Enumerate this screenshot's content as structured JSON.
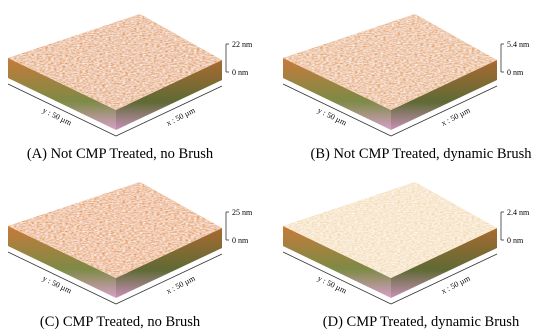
{
  "panels": [
    {
      "caption": "(A) Not CMP Treated, no Brush",
      "z_max": "22 nm",
      "z_min": "0 nm",
      "y_axis": "y : 50 µm",
      "x_axis": "x : 50 µm"
    },
    {
      "caption": "(B) Not CMP Treated, dynamic Brush",
      "z_max": "5.4 nm",
      "z_min": "0 nm",
      "y_axis": "y : 50 µm",
      "x_axis": "x : 50 µm"
    },
    {
      "caption": "(C) CMP Treated, no Brush",
      "z_max": "25 nm",
      "z_min": "0 nm",
      "y_axis": "y : 50 µm",
      "x_axis": "x : 50 µm"
    },
    {
      "caption": "(D) CMP Treated, dynamic Brush",
      "z_max": "2.4 nm",
      "z_min": "0 nm",
      "y_axis": "y : 50 µm",
      "x_axis": "x : 50 µm"
    }
  ]
}
